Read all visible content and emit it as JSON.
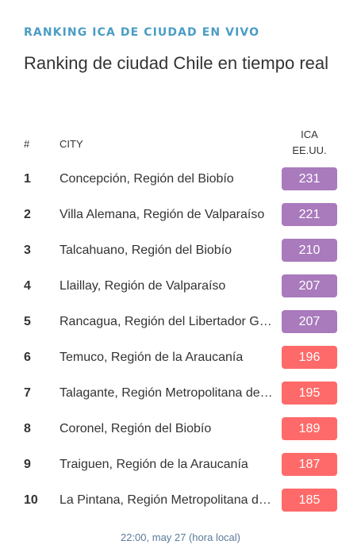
{
  "header": {
    "eyebrow": "RANKING ICA DE CIUDAD EN VIVO",
    "title": "Ranking de ciudad Chile en tiempo real"
  },
  "table": {
    "col_rank": "#",
    "col_city": "CITY",
    "col_aqi_line1": "ICA",
    "col_aqi_line2": "EE.UU."
  },
  "colors": {
    "very_unhealthy": "#a97abc",
    "unhealthy": "#fe6a69"
  },
  "rows": [
    {
      "rank": "1",
      "city": "Concepción, Región del Biobío",
      "aqi": "231",
      "level": "very_unhealthy"
    },
    {
      "rank": "2",
      "city": "Villa Alemana, Región de Valparaíso",
      "aqi": "221",
      "level": "very_unhealthy"
    },
    {
      "rank": "3",
      "city": "Talcahuano, Región del Biobío",
      "aqi": "210",
      "level": "very_unhealthy"
    },
    {
      "rank": "4",
      "city": "Llaillay, Región de Valparaíso",
      "aqi": "207",
      "level": "very_unhealthy"
    },
    {
      "rank": "5",
      "city": "Rancagua, Región del Libertador General Bernardo O'Higgins",
      "aqi": "207",
      "level": "very_unhealthy"
    },
    {
      "rank": "6",
      "city": "Temuco, Región de la Araucanía",
      "aqi": "196",
      "level": "unhealthy"
    },
    {
      "rank": "7",
      "city": "Talagante, Región Metropolitana de Santiago",
      "aqi": "195",
      "level": "unhealthy"
    },
    {
      "rank": "8",
      "city": "Coronel, Región del Biobío",
      "aqi": "189",
      "level": "unhealthy"
    },
    {
      "rank": "9",
      "city": "Traiguen, Región de la Araucanía",
      "aqi": "187",
      "level": "unhealthy"
    },
    {
      "rank": "10",
      "city": "La Pintana, Región Metropolitana de Santiago",
      "aqi": "185",
      "level": "unhealthy"
    }
  ],
  "footer": {
    "timestamp": "22:00, may 27 (hora local)"
  }
}
